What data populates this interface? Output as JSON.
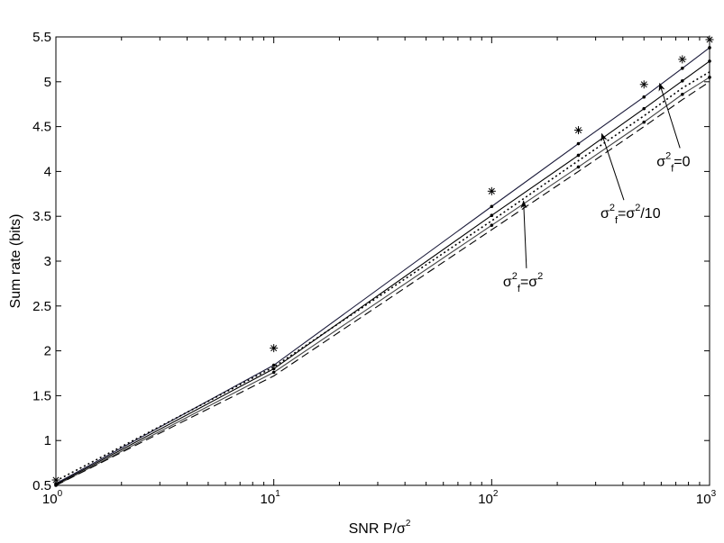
{
  "chart_data": {
    "type": "line",
    "title": "",
    "xlabel": "SNR P/σ",
    "xlabel_sup": "2",
    "ylabel": "Sum rate (bits)",
    "xscale": "log",
    "xlim": [
      1,
      1000
    ],
    "ylim": [
      0.5,
      5.5
    ],
    "xticks": [
      {
        "value": 1,
        "base": "10",
        "exp": "0"
      },
      {
        "value": 10,
        "base": "10",
        "exp": "1"
      },
      {
        "value": 100,
        "base": "10",
        "exp": "2"
      },
      {
        "value": 1000,
        "base": "10",
        "exp": "3"
      }
    ],
    "yticks": [
      "0.5",
      "1",
      "1.5",
      "2",
      "2.5",
      "3",
      "3.5",
      "4",
      "4.5",
      "5",
      "5.5"
    ],
    "grid": false,
    "series": [
      {
        "style": "solid",
        "color": "#1a1a3a",
        "marker": "dot",
        "x": [
          1,
          10,
          100,
          250,
          500,
          750,
          1000
        ],
        "y": [
          0.52,
          1.84,
          3.61,
          4.31,
          4.83,
          5.15,
          5.38
        ]
      },
      {
        "style": "solid",
        "color": "#000000",
        "marker": "dot",
        "x": [
          1,
          10,
          100,
          250,
          500,
          750,
          1000
        ],
        "y": [
          0.51,
          1.8,
          3.51,
          4.18,
          4.7,
          5.01,
          5.23
        ]
      },
      {
        "style": "dotted",
        "color": "#000000",
        "marker": "none",
        "x": [
          1,
          10,
          100,
          250,
          500,
          750,
          1000
        ],
        "y": [
          0.55,
          1.82,
          3.45,
          4.12,
          4.62,
          4.93,
          5.11
        ]
      },
      {
        "style": "solid",
        "color": "#444444",
        "marker": "dot",
        "x": [
          1,
          10,
          100,
          250,
          500,
          750,
          1000
        ],
        "y": [
          0.5,
          1.76,
          3.4,
          4.05,
          4.55,
          4.86,
          5.05
        ]
      },
      {
        "style": "dashed",
        "color": "#000000",
        "marker": "none",
        "x": [
          1,
          10,
          100,
          250,
          500,
          750,
          1000
        ],
        "y": [
          0.5,
          1.72,
          3.35,
          4.0,
          4.5,
          4.8,
          5.0
        ]
      },
      {
        "style": "none",
        "color": "#000000",
        "marker": "star",
        "x": [
          1,
          10,
          100,
          250,
          500,
          750,
          1000
        ],
        "y": [
          0.56,
          2.03,
          3.78,
          4.46,
          4.97,
          5.25,
          5.47
        ]
      }
    ],
    "annotations": [
      {
        "text_pre": "σ",
        "sub": "f",
        "sup1": "2",
        "text_post": "=0",
        "label_x": 760,
        "label_y": 4.06,
        "arrow_to_x": 590,
        "arrow_to_y": 4.98
      },
      {
        "text_pre": "σ",
        "sub": "f",
        "sup1": "2",
        "text_mid": "=σ",
        "sup2": "2",
        "text_post": "/10",
        "label_x": 420,
        "label_y": 3.48,
        "arrow_to_x": 320,
        "arrow_to_y": 4.42
      },
      {
        "text_pre": "σ",
        "sub": "f",
        "sup1": "2",
        "text_mid": "=σ",
        "sup2": "2",
        "text_post": "",
        "label_x": 150,
        "label_y": 2.72,
        "arrow_to_x": 140,
        "arrow_to_y": 3.67
      }
    ]
  }
}
